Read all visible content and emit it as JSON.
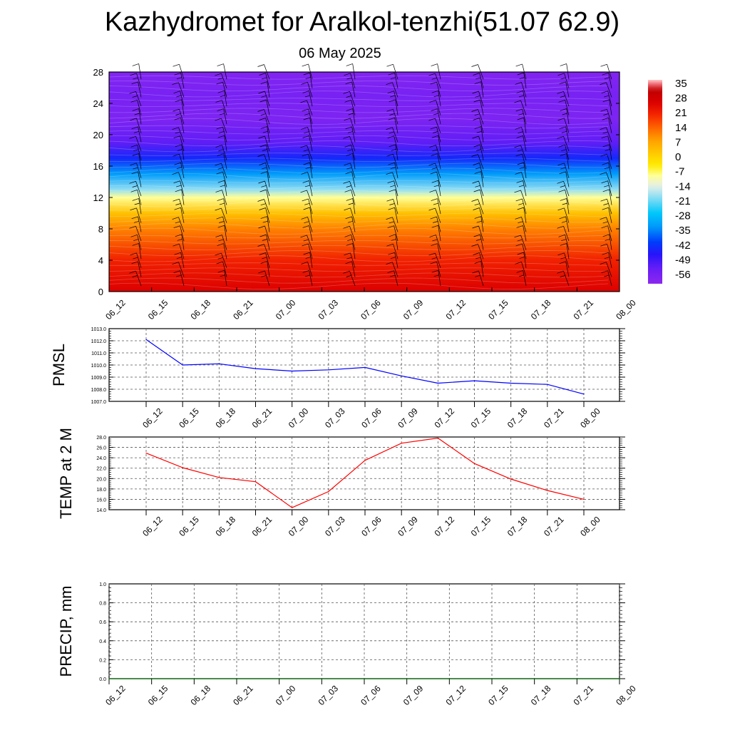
{
  "page": {
    "title": "Kazhydromet for Aralkol-tenzhi(51.07 62.9)",
    "date": "06 May 2025"
  },
  "chart_data": [
    {
      "type": "heatmap",
      "name": "cross-section",
      "x_ticks": [
        "06_12",
        "06_15",
        "06_18",
        "06_21",
        "07_00",
        "07_03",
        "07_06",
        "07_09",
        "07_12",
        "07_15",
        "07_18",
        "07_21",
        "08_00"
      ],
      "y_ticks": [
        0,
        4,
        8,
        12,
        16,
        20,
        24,
        28
      ],
      "ylim": [
        0,
        28
      ],
      "colorbar": {
        "labels": [
          35,
          28,
          21,
          14,
          7,
          0,
          -7,
          -14,
          -21,
          -28,
          -35,
          -42,
          -49,
          -56
        ],
        "range": [
          -60,
          38
        ]
      },
      "temperature_profile": [
        {
          "level": 0,
          "value": 27
        },
        {
          "level": 4,
          "value": 22
        },
        {
          "level": 8,
          "value": 12
        },
        {
          "level": 10,
          "value": 4
        },
        {
          "level": 12,
          "value": -8
        },
        {
          "level": 13,
          "value": -18
        },
        {
          "level": 15,
          "value": -32
        },
        {
          "level": 17,
          "value": -43
        },
        {
          "level": 19,
          "value": -52
        },
        {
          "level": 22,
          "value": -57
        },
        {
          "level": 25,
          "value": -56
        },
        {
          "level": 28,
          "value": -58
        }
      ]
    },
    {
      "type": "line",
      "name": "pmsl",
      "ylabel": "PMSL",
      "x": [
        "06_12",
        "06_15",
        "06_18",
        "06_21",
        "07_00",
        "07_03",
        "07_06",
        "07_09",
        "07_12",
        "07_15",
        "07_18",
        "07_21",
        "08_00"
      ],
      "values": [
        1012.1,
        1010.0,
        1010.1,
        1009.7,
        1009.5,
        1009.6,
        1009.8,
        1009.1,
        1008.5,
        1008.7,
        1008.5,
        1008.4,
        1007.6
      ],
      "ylim": [
        1007.0,
        1013.0
      ],
      "y_ticks": [
        "1007.0",
        "1008.0",
        "1009.0",
        "1010.0",
        "1011.0",
        "1012.0",
        "1013.0"
      ],
      "color": "#0000ff"
    },
    {
      "type": "line",
      "name": "temp",
      "ylabel": "TEMP at 2 M",
      "x": [
        "06_12",
        "06_15",
        "06_18",
        "06_21",
        "07_00",
        "07_03",
        "07_06",
        "07_09",
        "07_12",
        "07_15",
        "07_18",
        "07_21",
        "08_00"
      ],
      "values": [
        24.9,
        22.1,
        20.2,
        19.4,
        14.4,
        17.5,
        23.5,
        26.8,
        27.8,
        22.9,
        19.9,
        17.7,
        16.0
      ],
      "ylim": [
        14.0,
        28.0
      ],
      "y_ticks": [
        "14.0",
        "16.0",
        "18.0",
        "20.0",
        "22.0",
        "24.0",
        "26.0",
        "28.0"
      ],
      "color": "#ff0000"
    },
    {
      "type": "line",
      "name": "precip",
      "ylabel": "PRECIP, mm",
      "x": [
        "06_12",
        "06_15",
        "06_18",
        "06_21",
        "07_00",
        "07_03",
        "07_06",
        "07_09",
        "07_12",
        "07_15",
        "07_18",
        "07_21",
        "08_00"
      ],
      "values": [
        0,
        0,
        0,
        0,
        0,
        0,
        0,
        0,
        0,
        0,
        0,
        0,
        0
      ],
      "ylim": [
        0.0,
        1.0
      ],
      "y_ticks": [
        "0.0",
        "0.2",
        "0.4",
        "0.6",
        "0.8",
        "1.0"
      ],
      "color": "#006400"
    }
  ],
  "colors": {
    "pmsl_line": "#0000ff",
    "temp_line": "#ff0000",
    "precip_line": "#006400",
    "grid": "#555555"
  }
}
